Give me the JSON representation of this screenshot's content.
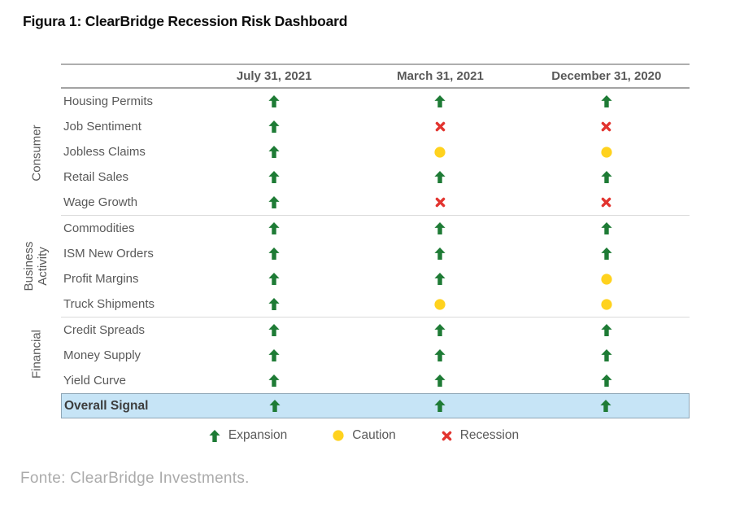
{
  "title": "Figura 1: ClearBridge Recession Risk Dashboard",
  "source": "Fonte: ClearBridge Investments.",
  "chart_data": {
    "type": "table",
    "title": "Figura 1: ClearBridge Recession Risk Dashboard",
    "columns": [
      "July 31, 2021",
      "March 31, 2021",
      "December 31, 2020"
    ],
    "groups": [
      {
        "label": "Consumer",
        "rows": [
          {
            "label": "Housing Permits",
            "values": [
              "expansion",
              "expansion",
              "expansion"
            ]
          },
          {
            "label": "Job Sentiment",
            "values": [
              "expansion",
              "recession",
              "recession"
            ]
          },
          {
            "label": "Jobless Claims",
            "values": [
              "expansion",
              "caution",
              "caution"
            ]
          },
          {
            "label": "Retail Sales",
            "values": [
              "expansion",
              "expansion",
              "expansion"
            ]
          },
          {
            "label": "Wage Growth",
            "values": [
              "expansion",
              "recession",
              "recession"
            ]
          }
        ]
      },
      {
        "label": "Business\nActivity",
        "rows": [
          {
            "label": "Commodities",
            "values": [
              "expansion",
              "expansion",
              "expansion"
            ]
          },
          {
            "label": "ISM New Orders",
            "values": [
              "expansion",
              "expansion",
              "expansion"
            ]
          },
          {
            "label": "Profit Margins",
            "values": [
              "expansion",
              "expansion",
              "caution"
            ]
          },
          {
            "label": "Truck Shipments",
            "values": [
              "expansion",
              "caution",
              "caution"
            ]
          }
        ]
      },
      {
        "label": "Financial",
        "rows": [
          {
            "label": "Credit Spreads",
            "values": [
              "expansion",
              "expansion",
              "expansion"
            ]
          },
          {
            "label": "Money Supply",
            "values": [
              "expansion",
              "expansion",
              "expansion"
            ]
          },
          {
            "label": "Yield Curve",
            "values": [
              "expansion",
              "expansion",
              "expansion"
            ]
          }
        ]
      }
    ],
    "overall_row": {
      "label": "Overall Signal",
      "values": [
        "expansion",
        "expansion",
        "expansion"
      ]
    },
    "legend": [
      {
        "status": "expansion",
        "label": "Expansion"
      },
      {
        "status": "caution",
        "label": "Caution"
      },
      {
        "status": "recession",
        "label": "Recession"
      }
    ],
    "status_colors": {
      "expansion": "#1e7b35",
      "caution": "#ffd21e",
      "recession": "#e2342f"
    },
    "overall_row_bg": "#c6e4f6",
    "overall_row_border": "#8fa6b6"
  }
}
